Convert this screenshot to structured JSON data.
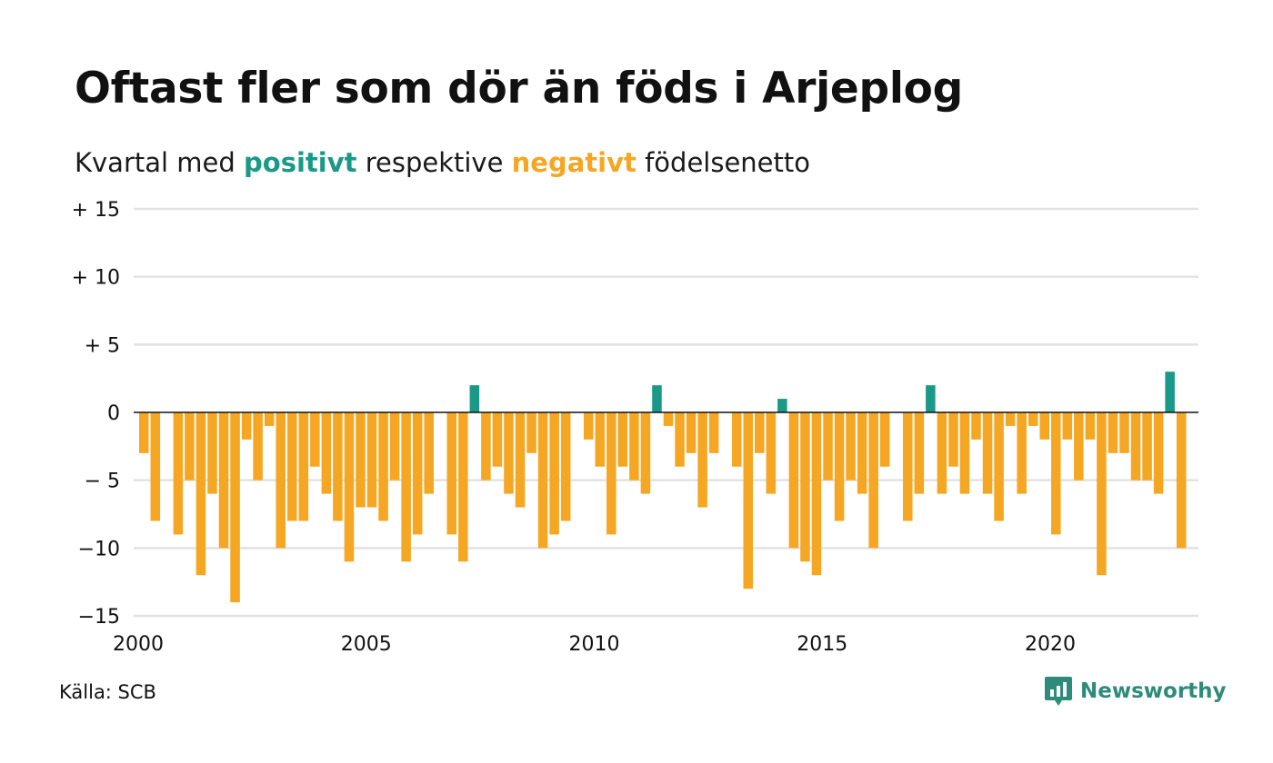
{
  "title": "Oftast fler som dör än föds i Arjeplog",
  "subtitle": {
    "prefix": "Kvartal med",
    "positive": "positivt",
    "middle": "respektive",
    "negative": "negativt",
    "suffix": "födelsenetto"
  },
  "source": "Källa: SCB",
  "logo": {
    "text": "Newsworthy",
    "icon": "newsworthy-chart-icon"
  },
  "colors": {
    "positive": "#1a9988",
    "negative": "#f5a623",
    "grid": "#e2e2e2",
    "zero": "#111111"
  },
  "chart_data": {
    "type": "bar",
    "xlabel": "",
    "ylabel": "",
    "ylim": [
      -15,
      15
    ],
    "y_ticks": [
      {
        "value": 15,
        "label": "+ 15"
      },
      {
        "value": 10,
        "label": "+ 10"
      },
      {
        "value": 5,
        "label": "+  5"
      },
      {
        "value": 0,
        "label": "0"
      },
      {
        "value": -5,
        "label": "− 5"
      },
      {
        "value": -10,
        "label": "−10"
      },
      {
        "value": -15,
        "label": "−15"
      }
    ],
    "xlim": [
      2000,
      2023.25
    ],
    "x_ticks": [
      {
        "value": 2000,
        "label": "2000"
      },
      {
        "value": 2005,
        "label": "2005"
      },
      {
        "value": 2010,
        "label": "2010"
      },
      {
        "value": 2015,
        "label": "2015"
      },
      {
        "value": 2020,
        "label": "2020"
      }
    ],
    "grid": true,
    "start_year": 2000,
    "periods_per_year": 4,
    "values": [
      -3,
      -8,
      0,
      -9,
      -5,
      -12,
      -6,
      -10,
      -14,
      -2,
      -5,
      -1,
      -10,
      -8,
      -8,
      -4,
      -6,
      -8,
      -11,
      -7,
      -7,
      -8,
      -5,
      -11,
      -9,
      -6,
      0,
      -9,
      -11,
      2,
      -5,
      -4,
      -6,
      -7,
      -3,
      -10,
      -9,
      -8,
      0,
      -2,
      -4,
      -9,
      -4,
      -5,
      -6,
      2,
      -1,
      -4,
      -3,
      -7,
      -3,
      0,
      -4,
      -13,
      -3,
      -6,
      1,
      -10,
      -11,
      -12,
      -5,
      -8,
      -5,
      -6,
      -10,
      -4,
      0,
      -8,
      -6,
      2,
      -6,
      -4,
      -6,
      -2,
      -6,
      -8,
      -1,
      -6,
      -1,
      -2,
      -9,
      -2,
      -5,
      -2,
      -12,
      -3,
      -3,
      -5,
      -5,
      -6,
      3,
      -10
    ]
  }
}
